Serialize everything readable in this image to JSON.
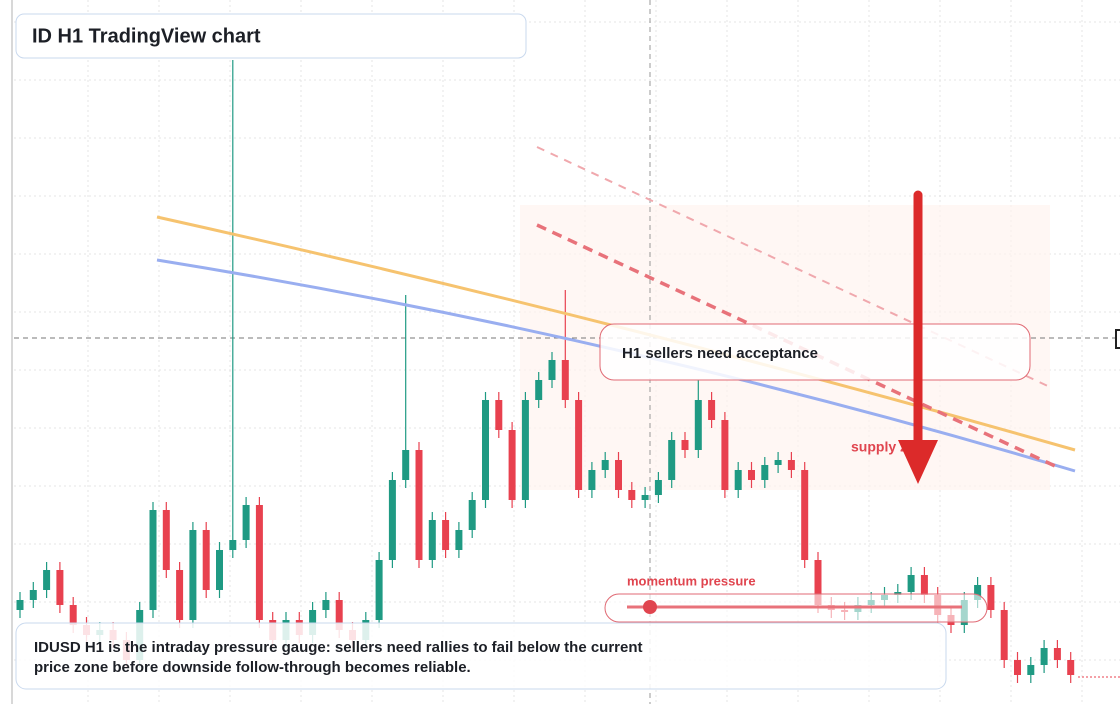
{
  "chart_data": {
    "type": "candlestick",
    "title": "ID H1 TradingView chart",
    "annotations": [
      "H1 sellers need acceptance",
      "supply zone",
      "momentum pressure"
    ],
    "caption_lines": [
      "IDUSD H1 is the intraday pressure gauge: sellers need rallies to fail below the current",
      "price zone before downside follow-through becomes reliable."
    ],
    "up_color": "#1f9a83",
    "down_color": "#e8414f",
    "ylim": [
      0,
      704
    ],
    "open": [
      94,
      104,
      114,
      134,
      99,
      79,
      69,
      74,
      64,
      44,
      94,
      194,
      134,
      84,
      174,
      114,
      154,
      164,
      199,
      84,
      64,
      84,
      69,
      94,
      104,
      74,
      64,
      84,
      144,
      224,
      254,
      144,
      184,
      154,
      174,
      204,
      304,
      274,
      204,
      304,
      324,
      344,
      304,
      214,
      234,
      244,
      214,
      204,
      209,
      224,
      264,
      254,
      304,
      284,
      214,
      234,
      224,
      239,
      244,
      234,
      144,
      99,
      94,
      92,
      99,
      104,
      109,
      112,
      129,
      109,
      89,
      79,
      104,
      119,
      94,
      44,
      29,
      39,
      56,
      44
    ],
    "high": [
      112,
      122,
      142,
      142,
      107,
      87,
      82,
      82,
      72,
      102,
      202,
      202,
      142,
      182,
      182,
      162,
      644,
      207,
      207,
      92,
      92,
      92,
      102,
      112,
      112,
      82,
      92,
      152,
      232,
      409,
      262,
      192,
      192,
      182,
      212,
      312,
      312,
      282,
      312,
      332,
      352,
      414,
      312,
      242,
      252,
      252,
      222,
      217,
      232,
      272,
      272,
      324,
      312,
      292,
      242,
      242,
      247,
      252,
      252,
      242,
      152,
      107,
      102,
      107,
      112,
      117,
      120,
      137,
      137,
      117,
      97,
      112,
      127,
      127,
      102,
      52,
      47,
      64,
      64,
      52
    ],
    "low": [
      86,
      96,
      106,
      91,
      71,
      61,
      61,
      56,
      36,
      36,
      86,
      126,
      76,
      76,
      106,
      106,
      146,
      156,
      76,
      56,
      56,
      61,
      61,
      86,
      66,
      56,
      56,
      76,
      136,
      216,
      136,
      136,
      146,
      146,
      166,
      196,
      266,
      196,
      196,
      296,
      316,
      296,
      206,
      206,
      226,
      206,
      196,
      196,
      201,
      216,
      246,
      246,
      276,
      206,
      206,
      216,
      216,
      231,
      226,
      136,
      91,
      86,
      84,
      84,
      91,
      96,
      101,
      104,
      101,
      81,
      71,
      71,
      96,
      86,
      36,
      21,
      21,
      31,
      36,
      21
    ],
    "close": [
      104,
      114,
      134,
      99,
      79,
      69,
      74,
      64,
      44,
      94,
      194,
      134,
      84,
      174,
      114,
      154,
      164,
      199,
      84,
      64,
      84,
      69,
      94,
      104,
      74,
      64,
      84,
      144,
      224,
      254,
      144,
      184,
      154,
      174,
      204,
      304,
      274,
      204,
      304,
      324,
      344,
      304,
      214,
      234,
      244,
      214,
      204,
      209,
      224,
      264,
      254,
      304,
      284,
      214,
      234,
      224,
      239,
      244,
      234,
      144,
      99,
      94,
      92,
      99,
      104,
      109,
      112,
      129,
      109,
      89,
      79,
      104,
      119,
      94,
      44,
      29,
      39,
      56,
      44,
      29
    ]
  }
}
